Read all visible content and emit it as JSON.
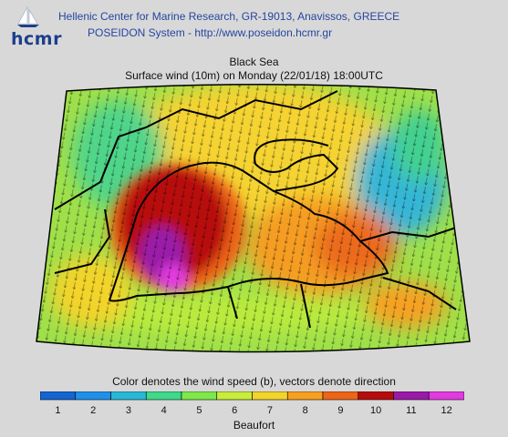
{
  "header": {
    "logo_text": "hcmr",
    "line1": "Hellenic Center for Marine Research, GR-19013, Anavissos, GREECE",
    "line2": "POSEIDON System - http://www.poseidon.hcmr.gr"
  },
  "map": {
    "region": "Black Sea",
    "subtitle": "Surface wind (10m) on Monday (22/01/18) 18:00UTC"
  },
  "legend": {
    "caption": "Color denotes the wind speed (b), vectors denote direction",
    "unit": "Beaufort",
    "ticks": [
      "1",
      "2",
      "3",
      "4",
      "5",
      "6",
      "7",
      "8",
      "9",
      "10",
      "11",
      "12"
    ],
    "colors": [
      "#1565d0",
      "#1e90ea",
      "#27b8d8",
      "#3ed98a",
      "#7ee84a",
      "#c8ec3a",
      "#f2d42a",
      "#f7a020",
      "#ee6418",
      "#b80c0c",
      "#9a1aa8",
      "#e23adf"
    ]
  },
  "colors": {
    "header_text": "#2446a0",
    "background": "#d8d8d8"
  }
}
